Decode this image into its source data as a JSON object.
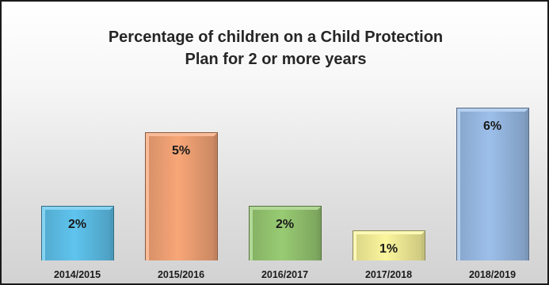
{
  "chart_data": {
    "type": "bar",
    "title": [
      "Percentage of children on a Child Protection",
      "Plan for 2 or more years"
    ],
    "xlabel": "",
    "ylabel": "",
    "categories": [
      "2014/2015",
      "2015/2016",
      "2016/2017",
      "2017/2018",
      "2018/2019"
    ],
    "values": [
      2,
      5,
      2,
      1,
      6
    ],
    "data_labels": [
      "2%",
      "5%",
      "2%",
      "1%",
      "6%"
    ],
    "ylim": [
      0,
      6.5
    ],
    "grid": false,
    "legend": "none",
    "bar_colors": [
      "#5fc4ee",
      "#f7a677",
      "#98cb73",
      "#fbf59c",
      "#9cbfea"
    ]
  }
}
